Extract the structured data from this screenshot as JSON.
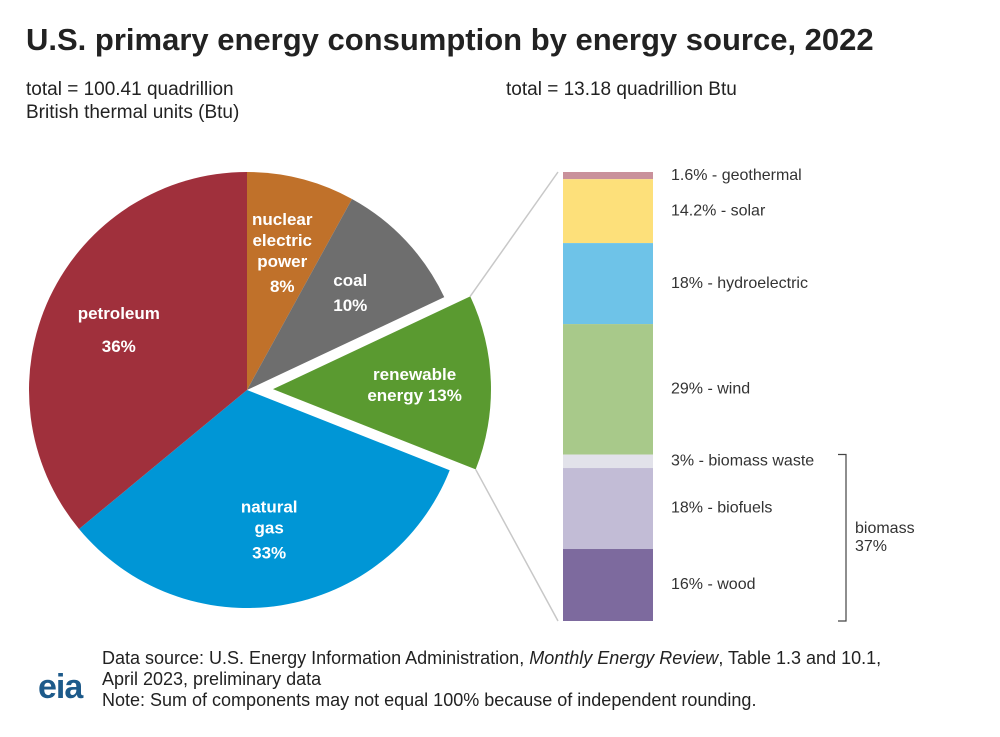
{
  "title": "U.S. primary energy consumption by energy source, 2022",
  "chart_data": [
    {
      "type": "pie",
      "subtitle": [
        "total = 100.41 quadrillion",
        "British thermal units (Btu)"
      ],
      "categories": [
        "nuclear electric power",
        "coal",
        "renewable energy",
        "natural gas",
        "petroleum"
      ],
      "values": [
        8,
        10,
        13,
        33,
        36
      ],
      "value_labels": [
        "8%",
        "10%",
        "13%",
        "33%",
        "36%"
      ],
      "colors": [
        "#c0712a",
        "#6e6e6e",
        "#5a9a30",
        "#0096d6",
        "#a0303c"
      ],
      "exploded": "renewable energy"
    },
    {
      "type": "bar",
      "stacked": true,
      "subtitle": "total = 13.18 quadrillion Btu",
      "values": [
        1.6,
        14.2,
        18,
        29,
        3,
        18,
        16
      ],
      "value_labels": [
        "1.6% - geothermal",
        "14.2% - solar",
        "18% - hydroelectric",
        "29% - wind",
        "3% - biomass waste",
        "18% - biofuels",
        "16% - wood"
      ],
      "colors": [
        "#c9919b",
        "#fde07a",
        "#6ec3e8",
        "#a8c98a",
        "#e2e2ea",
        "#c2bcd6",
        "#7d6a9e"
      ],
      "group": {
        "name": "biomass",
        "value": 37,
        "value_label": "37%"
      }
    }
  ],
  "notes": {
    "logo": "eia",
    "source_prefix": "Data source: U.S. Energy Information Administration,",
    "source_publication": "Monthly Energy Review",
    "source_detail": ", Table 1.3 and 10.1,",
    "source_date": "April 2023, preliminary data",
    "note": "Note: Sum of components may not equal 100% because of independent rounding."
  }
}
